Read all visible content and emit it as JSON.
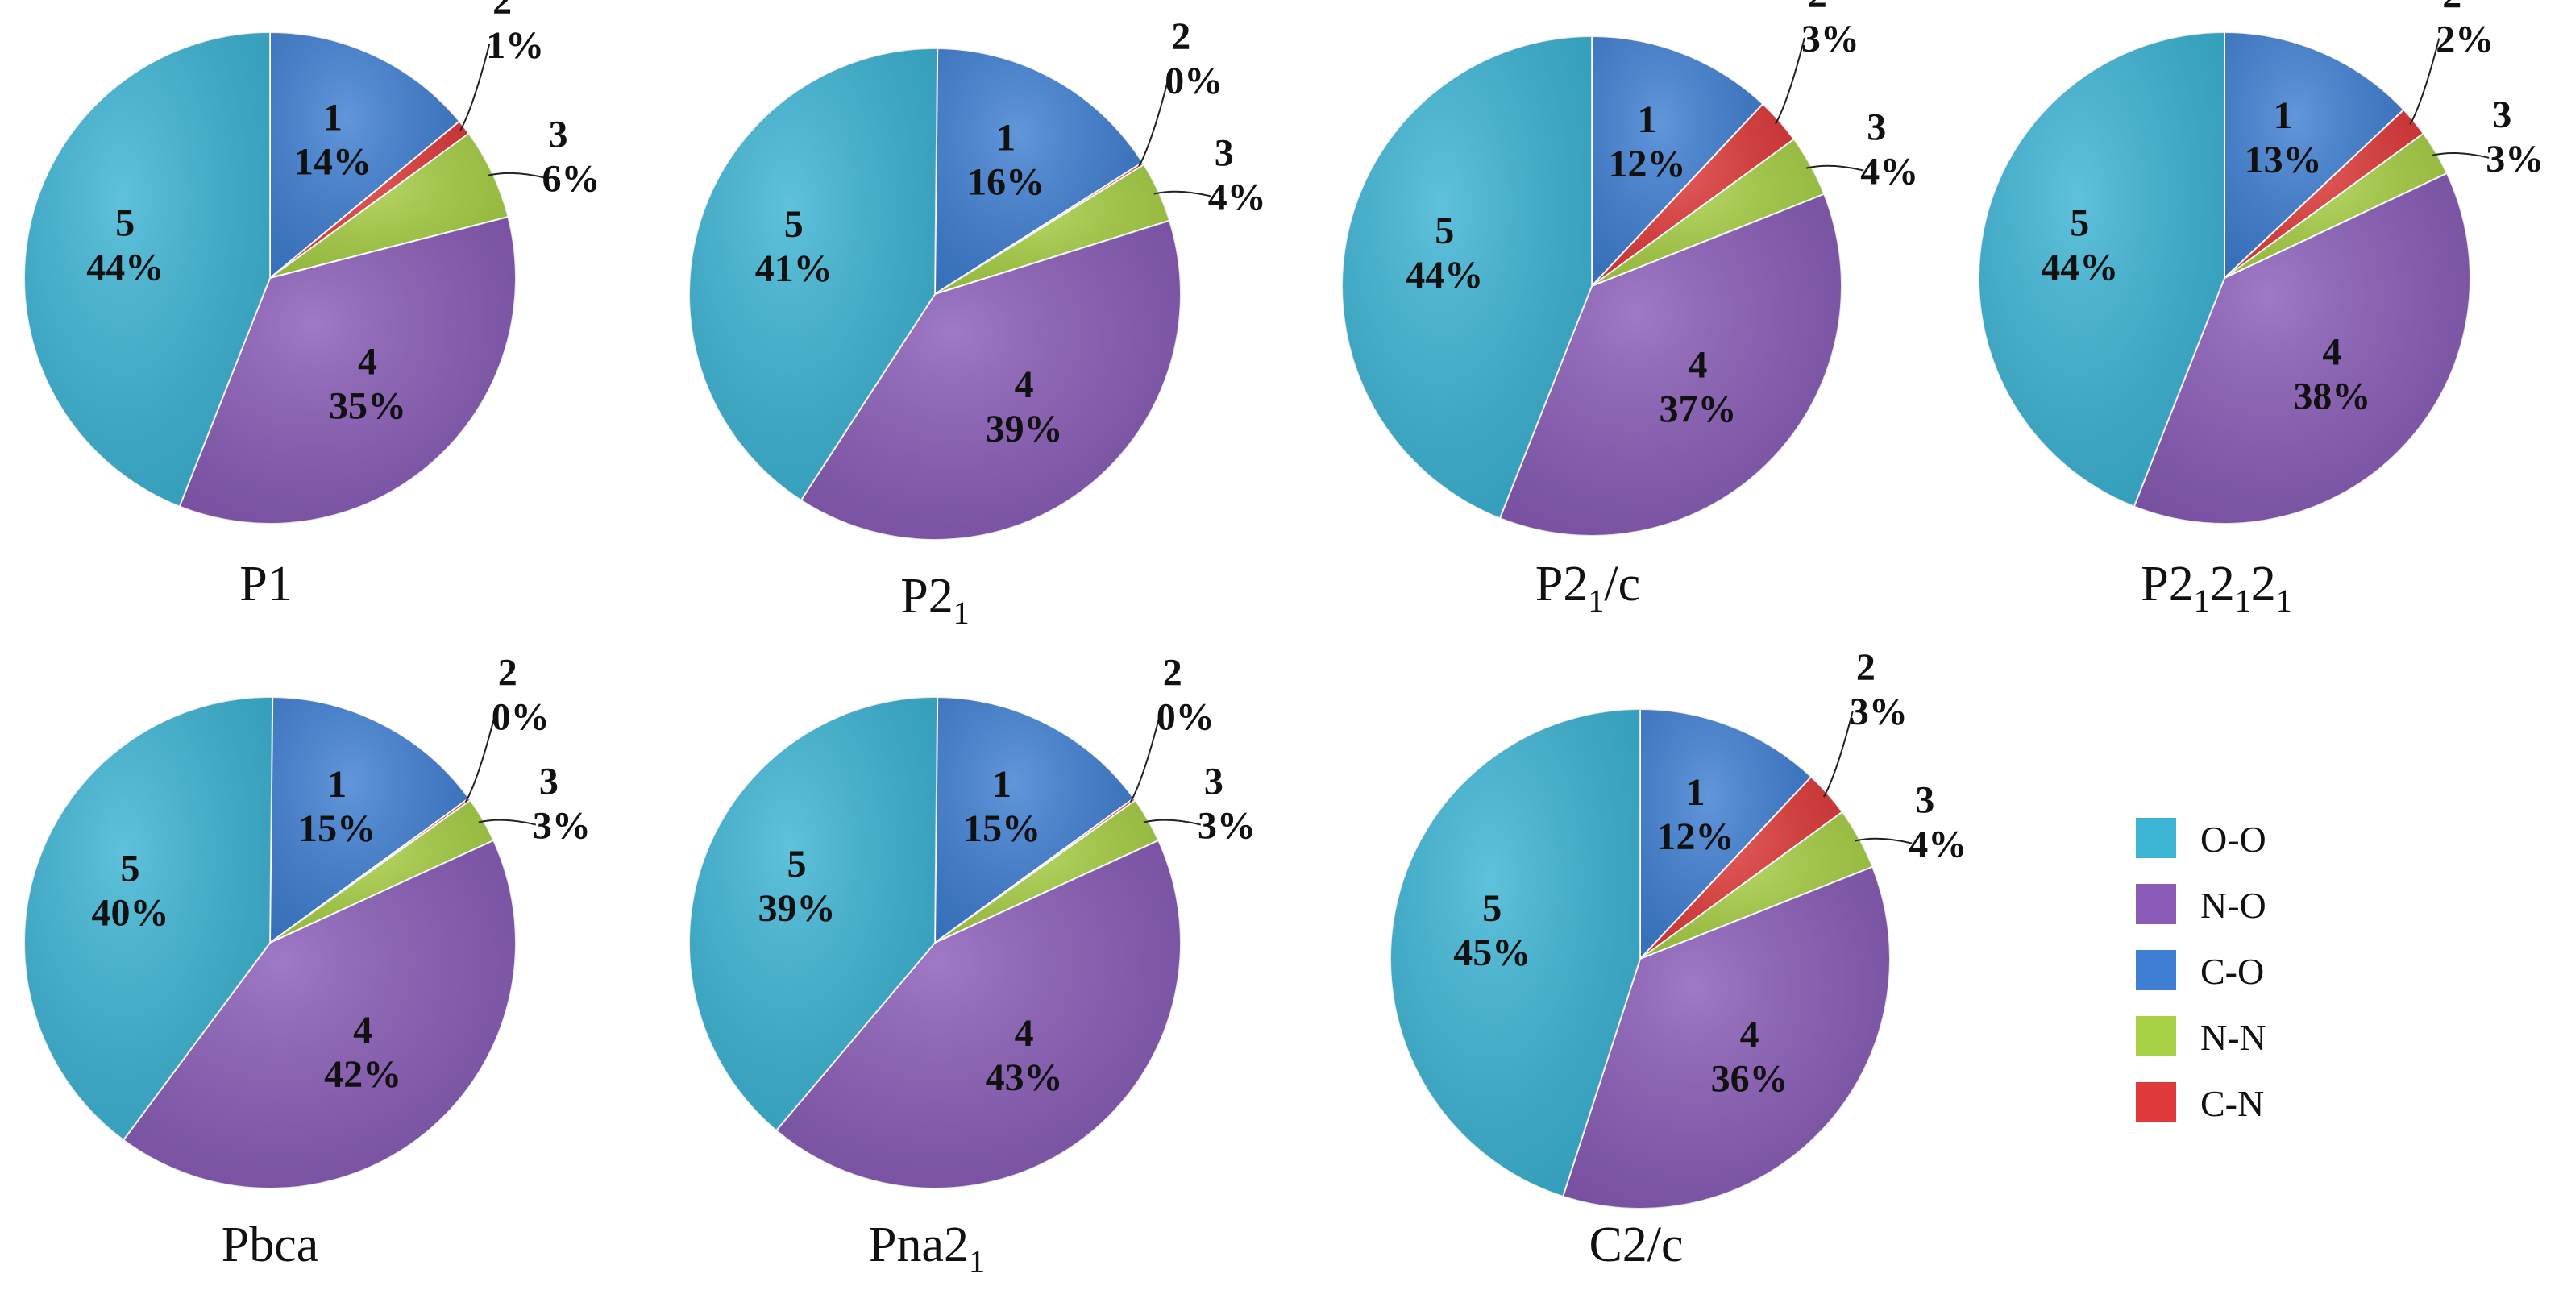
{
  "colors": {
    "1": "#3f7fd3",
    "2": "#e03a3a",
    "3": "#a8d045",
    "4": "#8a5cb8",
    "5": "#3cb4d4"
  },
  "legend": [
    {
      "label": "O-O",
      "color": "#3cb4d4"
    },
    {
      "label": "N-O",
      "color": "#8a5cb8"
    },
    {
      "label": "C-O",
      "color": "#3f7fd3"
    },
    {
      "label": "N-N",
      "color": "#a8d045"
    },
    {
      "label": "C-N",
      "color": "#e03a3a"
    }
  ],
  "chart_data": [
    {
      "type": "pie",
      "title": "P1",
      "title_sub": "",
      "title_tail": "",
      "slices": [
        {
          "id": "1",
          "value": 14
        },
        {
          "id": "2",
          "value": 1
        },
        {
          "id": "3",
          "value": 6
        },
        {
          "id": "4",
          "value": 35
        },
        {
          "id": "5",
          "value": 44
        }
      ]
    },
    {
      "type": "pie",
      "title": "P2",
      "title_sub": "1",
      "title_tail": "",
      "slices": [
        {
          "id": "1",
          "value": 16
        },
        {
          "id": "2",
          "value": 0
        },
        {
          "id": "3",
          "value": 4
        },
        {
          "id": "4",
          "value": 39
        },
        {
          "id": "5",
          "value": 41
        }
      ]
    },
    {
      "type": "pie",
      "title": "P2",
      "title_sub": "1",
      "title_tail": "/c",
      "slices": [
        {
          "id": "1",
          "value": 12
        },
        {
          "id": "2",
          "value": 3
        },
        {
          "id": "3",
          "value": 4
        },
        {
          "id": "4",
          "value": 37
        },
        {
          "id": "5",
          "value": 44
        }
      ]
    },
    {
      "type": "pie",
      "title": "P2",
      "title_sub": "1",
      "title_tail": "2",
      "title_parts": [
        {
          "t": "P2"
        },
        {
          "t": "1",
          "sub": true
        },
        {
          "t": "2"
        },
        {
          "t": "1",
          "sub": true
        },
        {
          "t": "2"
        },
        {
          "t": "1",
          "sub": true
        }
      ],
      "slices": [
        {
          "id": "1",
          "value": 13
        },
        {
          "id": "2",
          "value": 2
        },
        {
          "id": "3",
          "value": 3
        },
        {
          "id": "4",
          "value": 38
        },
        {
          "id": "5",
          "value": 44
        }
      ]
    },
    {
      "type": "pie",
      "title": "Pbca",
      "title_sub": "",
      "title_tail": "",
      "slices": [
        {
          "id": "1",
          "value": 15
        },
        {
          "id": "2",
          "value": 0
        },
        {
          "id": "3",
          "value": 3
        },
        {
          "id": "4",
          "value": 42
        },
        {
          "id": "5",
          "value": 40
        }
      ]
    },
    {
      "type": "pie",
      "title": "Pna2",
      "title_sub": "1",
      "title_tail": "",
      "slices": [
        {
          "id": "1",
          "value": 15
        },
        {
          "id": "2",
          "value": 0
        },
        {
          "id": "3",
          "value": 3
        },
        {
          "id": "4",
          "value": 43
        },
        {
          "id": "5",
          "value": 39
        }
      ]
    },
    {
      "type": "pie",
      "title": "C2/c",
      "title_sub": "",
      "title_tail": "",
      "slices": [
        {
          "id": "1",
          "value": 12
        },
        {
          "id": "2",
          "value": 3
        },
        {
          "id": "3",
          "value": 4
        },
        {
          "id": "4",
          "value": 36
        },
        {
          "id": "5",
          "value": 45
        }
      ]
    }
  ]
}
